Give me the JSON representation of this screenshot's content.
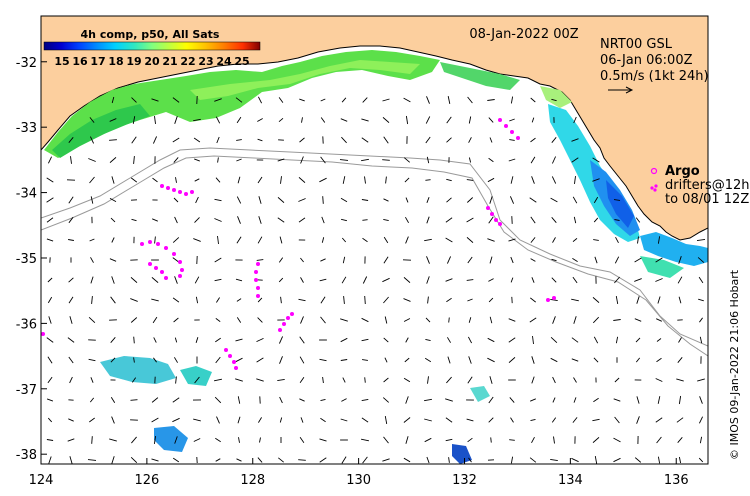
{
  "map": {
    "lon_range": [
      124,
      136.6
    ],
    "lat_range": [
      -38.15,
      -31.3
    ],
    "x_ticks": [
      "124",
      "126",
      "128",
      "130",
      "132",
      "134",
      "136"
    ],
    "x_tick_values": [
      124,
      126,
      128,
      130,
      132,
      134,
      136
    ],
    "y_ticks": [
      "-32",
      "-33",
      "-34",
      "-35",
      "-36",
      "-37",
      "-38"
    ],
    "y_tick_values": [
      -32,
      -33,
      -34,
      -35,
      -36,
      -37,
      -38
    ],
    "date_label": "08-Jan-2022 00Z",
    "product_label": "NRT00 GSL",
    "analysis_time": "06-Jan 06:00Z",
    "arrow_scale_label": "0.5m/s (1kt 24h)",
    "argo_label": "Argo",
    "drifters_label": "drifters@12h",
    "drifters_to_label": "to 08/01 12Z",
    "credit": "© IMOS 09-Jan-2022 21:06 Hobart",
    "colors": {
      "land": "#fccf9e",
      "drifter": "#ff00ff",
      "coast": "#000000",
      "isobath": "#9a9a9a"
    }
  },
  "colorbar": {
    "title": "4h comp, p50, All Sats",
    "ticks": [
      "15",
      "16",
      "17",
      "18",
      "19",
      "20",
      "21",
      "22",
      "23",
      "24",
      "25"
    ],
    "range": [
      14,
      26
    ],
    "colors": [
      "#000080",
      "#0000d0",
      "#0040ff",
      "#0090ff",
      "#00d0ff",
      "#30e8c0",
      "#80ff80",
      "#c0ff40",
      "#ffff00",
      "#ffc000",
      "#ff8000",
      "#ff3000",
      "#c00000",
      "#800000"
    ]
  }
}
